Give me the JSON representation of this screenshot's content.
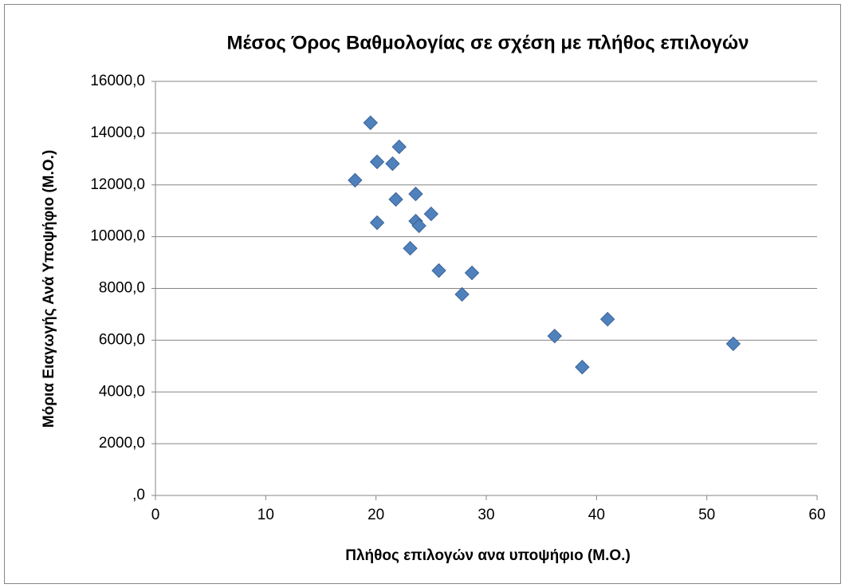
{
  "chart_data": {
    "type": "scatter",
    "title": "Μέσος Όρος Βαθμολογίας σε σχέση με πλήθος επιλογών",
    "x_label": "Πλήθος επιλογών ανα υποψήφιο (Μ.Ο.)",
    "y_label": "Μόρια Ειαγωγής Ανά Υποψήφιο (Μ.Ο.)",
    "color": "#4f81bd",
    "x": [
      18.1,
      19.5,
      20.1,
      20.1,
      21.5,
      21.8,
      22.1,
      23.1,
      23.6,
      23.6,
      23.9,
      25.0,
      25.7,
      27.8,
      28.7,
      36.2,
      38.7,
      41.0,
      52.4
    ],
    "values": [
      12180,
      14400,
      12890,
      10540,
      12820,
      11440,
      13470,
      9550,
      10600,
      11650,
      10420,
      10880,
      8690,
      7770,
      8600,
      6160,
      4960,
      6810,
      5860
    ],
    "xlim": [
      0,
      60
    ],
    "xticks": [
      0,
      10,
      20,
      30,
      40,
      50,
      60
    ],
    "ylim": [
      0,
      16000
    ],
    "yticks": [
      {
        "value": 0,
        "label": ",0"
      },
      {
        "value": 2000,
        "label": "2000,0"
      },
      {
        "value": 4000,
        "label": "4000,0"
      },
      {
        "value": 6000,
        "label": "6000,0"
      },
      {
        "value": 8000,
        "label": "8000,0"
      },
      {
        "value": 10000,
        "label": "10000,0"
      },
      {
        "value": 12000,
        "label": "12000,0"
      },
      {
        "value": 14000,
        "label": "14000,0"
      },
      {
        "value": 16000,
        "label": "16000,0"
      }
    ],
    "grid": true
  }
}
